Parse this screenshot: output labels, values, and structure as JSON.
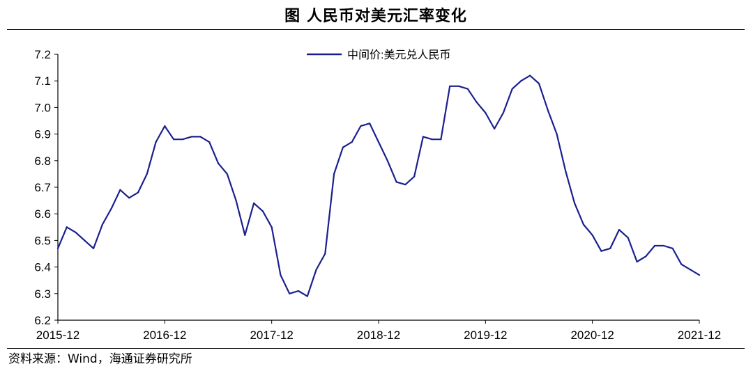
{
  "header": {
    "title": "图  人民币对美元汇率变化"
  },
  "footer": {
    "source": "资料来源：Wind，海通证券研究所"
  },
  "colors": {
    "series": "#1a1f8f",
    "axis": "#000000"
  },
  "chart_data": {
    "type": "line",
    "title": "图  人民币对美元汇率变化",
    "xlabel": "",
    "ylabel": "",
    "ylim": [
      6.2,
      7.2
    ],
    "yticks": [
      6.2,
      6.3,
      6.4,
      6.5,
      6.6,
      6.7,
      6.8,
      6.9,
      7.0,
      7.1,
      7.2
    ],
    "ytick_labels": [
      "6.2",
      "6.3",
      "6.4",
      "6.5",
      "6.6",
      "6.7",
      "6.8",
      "6.9",
      "7.0",
      "7.1",
      "7.2"
    ],
    "xlim": [
      "2015-12",
      "2021-12"
    ],
    "xticks": [
      "2015-12",
      "2016-12",
      "2017-12",
      "2018-12",
      "2019-12",
      "2020-12",
      "2021-12"
    ],
    "grid": false,
    "legend": "top-center",
    "series": [
      {
        "name": "中间价:美元兑人民币",
        "x": [
          "2015-12",
          "2016-01",
          "2016-02",
          "2016-03",
          "2016-04",
          "2016-05",
          "2016-06",
          "2016-07",
          "2016-08",
          "2016-09",
          "2016-10",
          "2016-11",
          "2016-12",
          "2017-01",
          "2017-02",
          "2017-03",
          "2017-04",
          "2017-05",
          "2017-06",
          "2017-07",
          "2017-08",
          "2017-09",
          "2017-10",
          "2017-11",
          "2017-12",
          "2018-01",
          "2018-02",
          "2018-03",
          "2018-04",
          "2018-05",
          "2018-06",
          "2018-07",
          "2018-08",
          "2018-09",
          "2018-10",
          "2018-11",
          "2018-12",
          "2019-01",
          "2019-02",
          "2019-03",
          "2019-04",
          "2019-05",
          "2019-06",
          "2019-07",
          "2019-08",
          "2019-09",
          "2019-10",
          "2019-11",
          "2019-12",
          "2020-01",
          "2020-02",
          "2020-03",
          "2020-04",
          "2020-05",
          "2020-06",
          "2020-07",
          "2020-08",
          "2020-09",
          "2020-10",
          "2020-11",
          "2020-12",
          "2021-01",
          "2021-02",
          "2021-03",
          "2021-04",
          "2021-05",
          "2021-06",
          "2021-07",
          "2021-08",
          "2021-09",
          "2021-10",
          "2021-11",
          "2021-12"
        ],
        "values": [
          6.47,
          6.55,
          6.53,
          6.5,
          6.47,
          6.56,
          6.62,
          6.69,
          6.66,
          6.68,
          6.75,
          6.87,
          6.93,
          6.88,
          6.88,
          6.89,
          6.89,
          6.87,
          6.79,
          6.75,
          6.65,
          6.52,
          6.64,
          6.61,
          6.55,
          6.37,
          6.3,
          6.31,
          6.29,
          6.39,
          6.45,
          6.75,
          6.85,
          6.87,
          6.93,
          6.94,
          6.87,
          6.8,
          6.72,
          6.71,
          6.74,
          6.89,
          6.88,
          6.88,
          7.08,
          7.08,
          7.07,
          7.02,
          6.98,
          6.92,
          6.98,
          7.07,
          7.1,
          7.12,
          7.09,
          6.99,
          6.9,
          6.76,
          6.64,
          6.56,
          6.52,
          6.46,
          6.47,
          6.54,
          6.51,
          6.42,
          6.44,
          6.48,
          6.48,
          6.47,
          6.41,
          6.39,
          6.37
        ]
      }
    ]
  }
}
